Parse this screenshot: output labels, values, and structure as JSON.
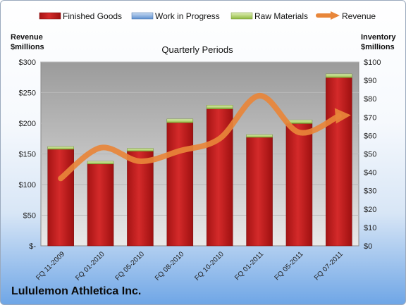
{
  "chart_data": {
    "type": "bar",
    "title": "Quarterly Periods",
    "categories": [
      "FQ 11-2009",
      "FQ 01-2010",
      "FQ 05-2010",
      "FQ 08-2010",
      "FQ 10-2010",
      "FQ 01-2011",
      "FQ 05-2011",
      "FQ 07-2011"
    ],
    "series": [
      {
        "name": "Finished Goods",
        "axis": "right",
        "stacked": true,
        "color": "#c81e1e",
        "values": [
          52.5,
          44.5,
          51.5,
          67,
          74.5,
          59,
          66.5,
          91.5
        ]
      },
      {
        "name": "Work in Progress",
        "axis": "right",
        "stacked": true,
        "color": "#6f9fd8",
        "values": [
          0,
          0,
          0,
          0,
          0,
          0,
          0,
          0
        ]
      },
      {
        "name": "Raw Materials",
        "axis": "right",
        "stacked": true,
        "color": "#a4c95a",
        "values": [
          1.5,
          1.5,
          1.5,
          2,
          2,
          1.5,
          2,
          2
        ]
      },
      {
        "name": "Revenue",
        "axis": "left",
        "type": "line",
        "color": "#e8863a",
        "values": [
          110,
          160,
          138,
          155,
          175,
          245,
          185,
          212
        ]
      }
    ],
    "left_axis": {
      "label_line1": "Revenue",
      "label_line2": "$millions",
      "range": [
        0,
        300
      ],
      "ticks": [
        "$-",
        "$50",
        "$100",
        "$150",
        "$200",
        "$250",
        "$300"
      ]
    },
    "right_axis": {
      "label_line1": "Inventory",
      "label_line2": "$millions",
      "range": [
        0,
        100
      ],
      "ticks": [
        "$0",
        "$10",
        "$20",
        "$30",
        "$40",
        "$50",
        "$60",
        "$70",
        "$80",
        "$90",
        "$100"
      ]
    },
    "grid": true,
    "legend_position": "top",
    "footer_title": "Lululemon Athletica Inc."
  }
}
